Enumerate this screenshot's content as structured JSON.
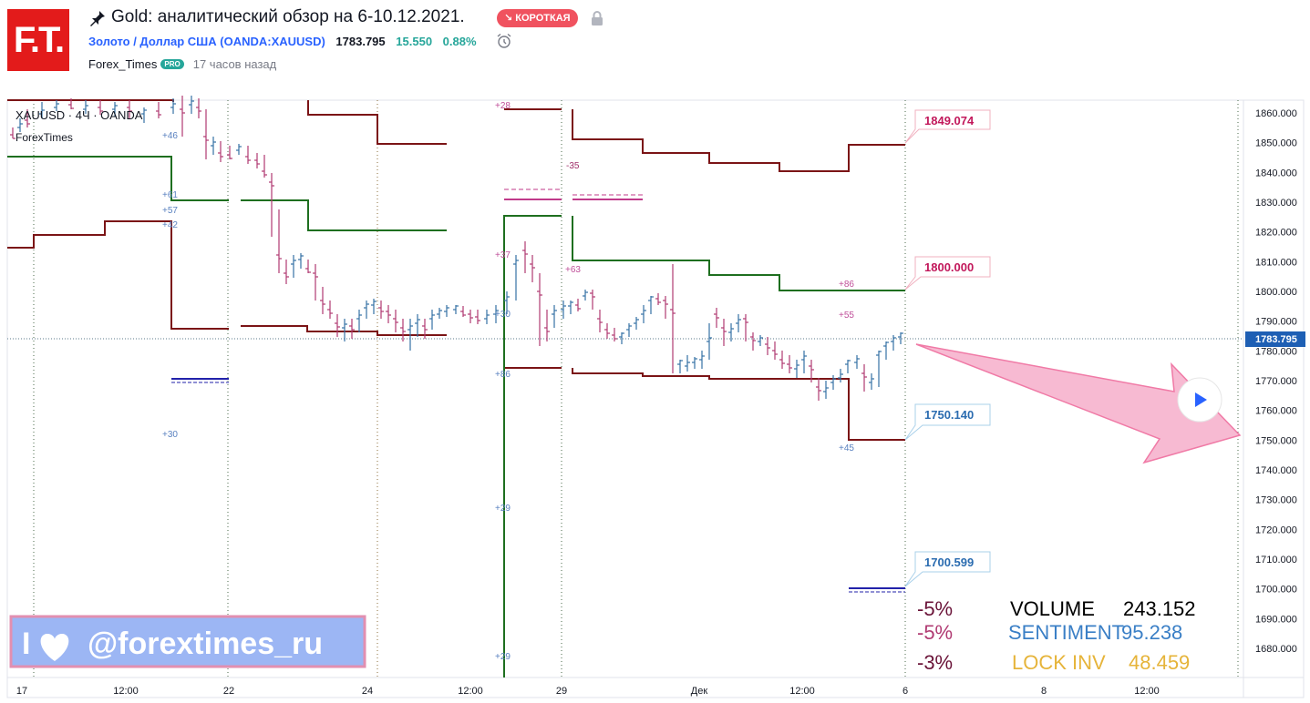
{
  "header": {
    "logo_text": "F.T.",
    "title": "Gold: аналитический обзор на 6-10.12.2021.",
    "badge": "↘ КОРОТКАЯ",
    "symbol_name": "Золото / Доллар США",
    "symbol_code": "(OANDA:XAUUSD)",
    "price": "1783.795",
    "change": "15.550",
    "change_pct": "0.88%",
    "author": "Forex_Times",
    "pro_badge": "PRO",
    "time_ago": "17 часов назад",
    "icons": [
      "pin-icon",
      "lock-icon",
      "alarm-clock-icon"
    ]
  },
  "chart": {
    "legend_symbol": "XAUUSD · 4Ч · OANDA",
    "legend_author": "ForexTimes",
    "price_axis": [
      "1860.000",
      "1850.000",
      "1840.000",
      "1830.000",
      "1820.000",
      "1810.000",
      "1800.000",
      "1790.000",
      "1780.000",
      "1770.000",
      "1760.000",
      "1750.000",
      "1740.000",
      "1730.000",
      "1720.000",
      "1710.000",
      "1700.000",
      "1690.000",
      "1680.000"
    ],
    "time_axis": [
      "17",
      "12:00",
      "22",
      "24",
      "12:00",
      "29",
      "Дек",
      "12:00",
      "6",
      "8",
      "12:00"
    ],
    "current_price": "1783.795",
    "level_labels": [
      "1849.074",
      "1800.000",
      "1750.140",
      "1700.599"
    ],
    "small_labels": [
      "+28",
      "+46",
      "+61",
      "+57",
      "+42",
      "+30",
      "-35",
      "+37",
      "+63",
      "+30",
      "+86",
      "+29",
      "+29",
      "+86",
      "+55",
      "+45"
    ],
    "watermark": "@forextimes_ru",
    "watermark_prefix": "I",
    "stats": [
      {
        "pct": "-5%",
        "name": "VOLUME",
        "value": "243.152"
      },
      {
        "pct": "-5%",
        "name": "SENTIMENT",
        "value": "95.238"
      },
      {
        "pct": "-3%",
        "name": "LOCK INV",
        "value": "48.459"
      }
    ],
    "colors": {
      "dark_red": "#7b1416",
      "green": "#1e6f1f",
      "pink_label": "#c2185b",
      "blue_label": "#2b6cb0",
      "candle_up": "#3572a5",
      "candle_down": "#b03a72",
      "price_tag": "#1e5fb4",
      "arrow": "#f5a9c7",
      "stat_pct": "#6a1338",
      "stat_volume": "#000000",
      "stat_sentiment": "#3a7fc6",
      "stat_lock": "#e6b43a"
    }
  }
}
